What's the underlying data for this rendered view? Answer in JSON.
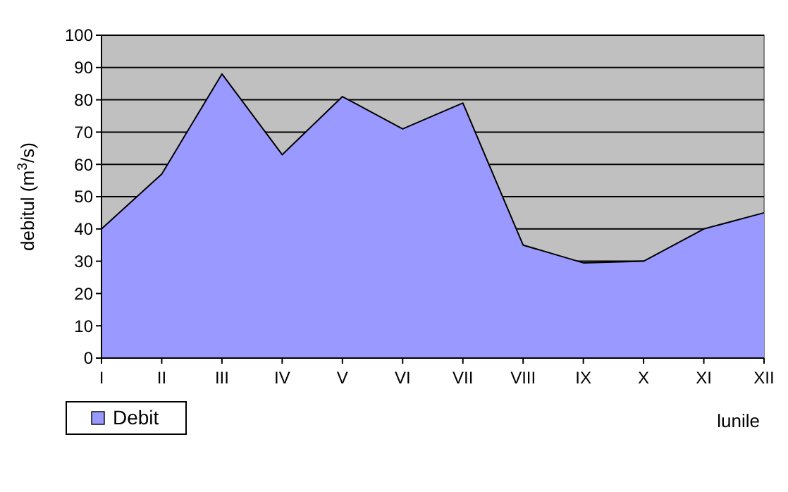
{
  "chart_data": {
    "type": "area",
    "xlabel": "lunile",
    "ylabel": "debitul (m$^{3}$/s)",
    "categories": [
      "I",
      "II",
      "III",
      "IV",
      "V",
      "VI",
      "VII",
      "VIII",
      "IX",
      "X",
      "XI",
      "XII"
    ],
    "series": [
      {
        "name": "Debit",
        "color": "#9999ff",
        "values": [
          40,
          57,
          88,
          63,
          81,
          71,
          79,
          35,
          29.5,
          30,
          40,
          45
        ]
      }
    ],
    "ylim": [
      0,
      100
    ],
    "yticks": [
      0,
      10,
      20,
      30,
      40,
      50,
      60,
      70,
      80,
      90,
      100
    ],
    "grid": "y",
    "legend": "bottom left"
  }
}
